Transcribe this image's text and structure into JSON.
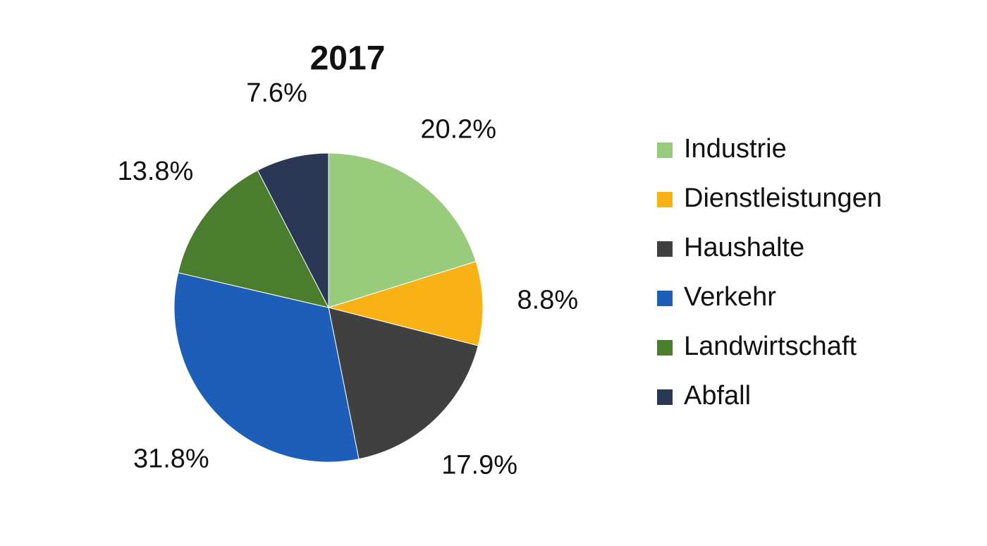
{
  "chart_data": {
    "type": "pie",
    "title": "2017",
    "categories": [
      "Industrie",
      "Dienstleistungen",
      "Haushalte",
      "Verkehr",
      "Landwirtschaft",
      "Abfall"
    ],
    "values": [
      20.2,
      8.8,
      17.9,
      31.8,
      13.8,
      7.6
    ],
    "value_labels": [
      "20.2%",
      "8.8%",
      "17.9%",
      "31.8%",
      "13.8%",
      "7.6%"
    ],
    "colors": [
      "#98cb7b",
      "#f8b215",
      "#404040",
      "#1d5fb8",
      "#4a7d2e",
      "#2a3856"
    ],
    "legend": "right"
  }
}
